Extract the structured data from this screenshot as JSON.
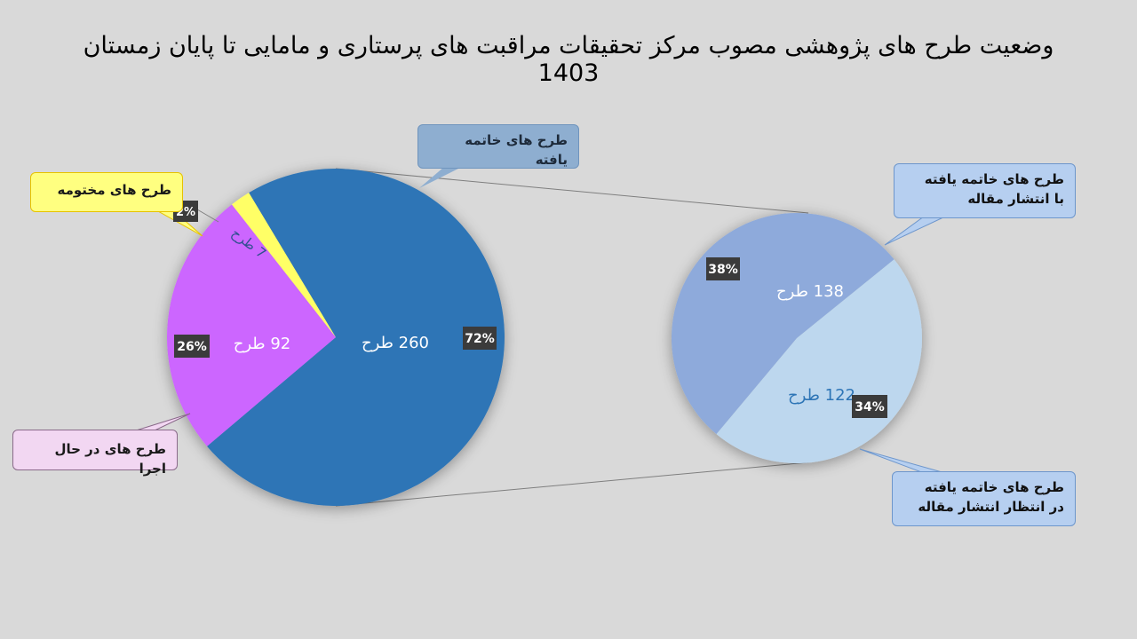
{
  "title": "وضعیت طرح های پژوهشی مصوب مرکز تحقیقات مراقبت های پرستاری و مامایی تا پایان زمستان 1403",
  "chart_data": [
    {
      "type": "pie",
      "name": "main-pie",
      "slices": [
        {
          "key": "completed",
          "value_label": "260 طرح",
          "value": 260,
          "percent": 72,
          "percent_label": "72%",
          "color": "#2e75b6"
        },
        {
          "key": "running",
          "value_label": "92 طرح",
          "value": 92,
          "percent": 26,
          "percent_label": "26%",
          "color": "#cc66ff"
        },
        {
          "key": "closed",
          "value_label": "7 طرح",
          "value": 7,
          "percent": 2,
          "percent_label": "2%",
          "color": "#ffff66"
        }
      ],
      "callouts": {
        "completed": "طرح های خاتمه یافته",
        "closed": "طرح های مختومه",
        "running": "طرح های در حال اجرا"
      }
    },
    {
      "type": "pie",
      "name": "breakdown-pie",
      "slices": [
        {
          "key": "published",
          "value_label": "138 طرح",
          "value": 138,
          "percent": 38,
          "percent_label": "38%",
          "color": "#8eaadb"
        },
        {
          "key": "awaiting",
          "value_label": "122 طرح",
          "value": 122,
          "percent": 34,
          "percent_label": "34%",
          "color": "#bdd7ee"
        }
      ],
      "callouts": {
        "published_line1": "طرح های خاتمه یافته",
        "published_line2": "با انتشار مقاله",
        "awaiting_line1": "طرح های خاتمه یافته",
        "awaiting_line2": "در انتظار  انتشار مقاله"
      }
    }
  ]
}
